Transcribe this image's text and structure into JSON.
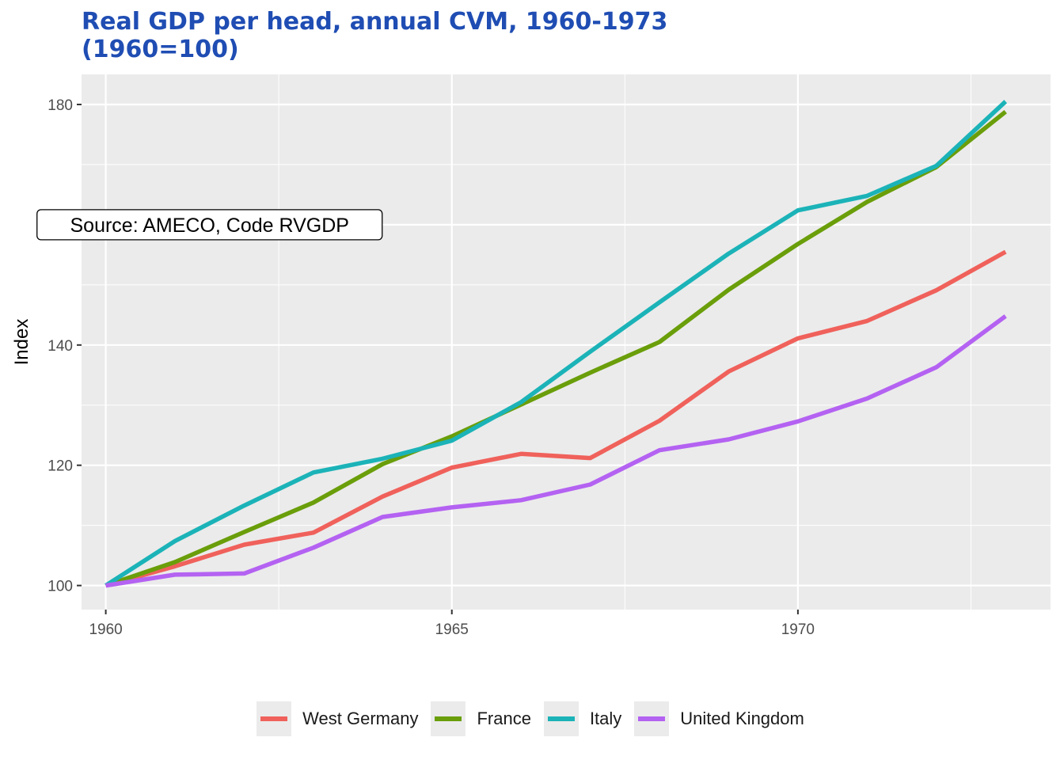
{
  "chart_data": {
    "type": "line",
    "title": "Real GDP per head, annual CVM, 1960-1973\n(1960=100)",
    "title_lines": [
      "Real GDP per head, annual CVM, 1960-1973",
      "(1960=100)"
    ],
    "xlabel": "",
    "ylabel": "Index",
    "xlim": [
      1959.65,
      1973.65
    ],
    "ylim": [
      96,
      185
    ],
    "x_ticks": [
      1960,
      1965,
      1970
    ],
    "y_ticks": [
      100,
      120,
      140,
      160,
      180
    ],
    "x": [
      1960,
      1961,
      1962,
      1963,
      1964,
      1965,
      1966,
      1967,
      1968,
      1969,
      1970,
      1971,
      1972,
      1973
    ],
    "grid": true,
    "legend_position": "bottom",
    "annotation": {
      "text": "Source: AMECO, Code RVGDP",
      "x": 1961.5,
      "y": 160
    },
    "series": [
      {
        "name": "West Germany",
        "color": "#f0615b",
        "values": [
          100,
          103.2,
          106.8,
          108.8,
          114.8,
          119.6,
          121.9,
          121.2,
          127.4,
          135.6,
          141.1,
          144,
          149.1,
          155.5
        ]
      },
      {
        "name": "France",
        "color": "#6a9e0a",
        "values": [
          100,
          103.9,
          108.9,
          113.8,
          120.2,
          124.8,
          130.1,
          135.4,
          140.5,
          149.2,
          156.8,
          163.8,
          169.6,
          178.8
        ]
      },
      {
        "name": "Italy",
        "color": "#1bb3b8",
        "values": [
          100,
          107.4,
          113.3,
          118.8,
          121.1,
          124.1,
          130.5,
          138.9,
          147.1,
          155.2,
          162.4,
          164.8,
          169.8,
          180.5
        ]
      },
      {
        "name": "United Kingdom",
        "color": "#b462f2",
        "values": [
          100,
          101.8,
          102,
          106.3,
          111.4,
          113,
          114.2,
          116.8,
          122.5,
          124.3,
          127.3,
          131.1,
          136.3,
          144.8
        ]
      }
    ]
  }
}
